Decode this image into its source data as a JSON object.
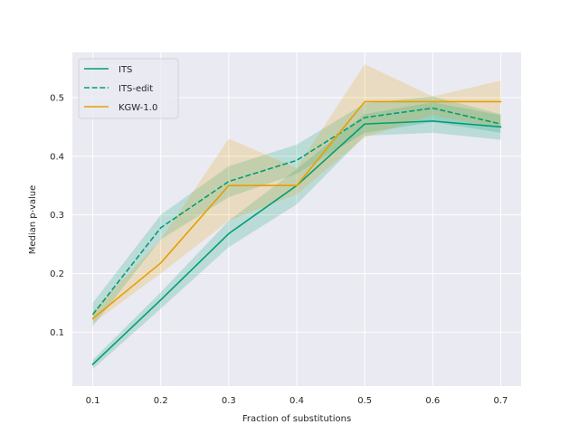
{
  "chart_data": {
    "type": "line",
    "title": "",
    "xlabel": "Fraction of substitutions",
    "ylabel": "Median p-value",
    "x": [
      0.1,
      0.2,
      0.3,
      0.4,
      0.5,
      0.6,
      0.7
    ],
    "xlim": [
      0.07,
      0.73
    ],
    "ylim": [
      0.008,
      0.577
    ],
    "xticks": [
      0.1,
      0.2,
      0.3,
      0.4,
      0.5,
      0.6,
      0.7
    ],
    "xtick_labels": [
      "0.1",
      "0.2",
      "0.3",
      "0.4",
      "0.5",
      "0.6",
      "0.7"
    ],
    "yticks": [
      0.1,
      0.2,
      0.3,
      0.4,
      0.5
    ],
    "ytick_labels": [
      "0.1",
      "0.2",
      "0.3",
      "0.4",
      "0.5"
    ],
    "grid": true,
    "legend_position": "top-left",
    "series": [
      {
        "name": "ITS",
        "color": "#009E73",
        "dash": "solid",
        "values": [
          0.045,
          0.155,
          0.268,
          0.35,
          0.455,
          0.46,
          0.45
        ],
        "lower": [
          0.037,
          0.14,
          0.245,
          0.318,
          0.435,
          0.44,
          0.428
        ],
        "upper": [
          0.053,
          0.168,
          0.29,
          0.378,
          0.472,
          0.492,
          0.47
        ]
      },
      {
        "name": "ITS-edit",
        "color": "#009E73",
        "dash": "dashed",
        "values": [
          0.13,
          0.278,
          0.357,
          0.393,
          0.466,
          0.482,
          0.455
        ],
        "lower": [
          0.11,
          0.258,
          0.33,
          0.37,
          0.44,
          0.458,
          0.44
        ],
        "upper": [
          0.15,
          0.3,
          0.383,
          0.42,
          0.49,
          0.502,
          0.472
        ]
      },
      {
        "name": "KGW-1.0",
        "color": "#E69F00",
        "dash": "solid",
        "values": [
          0.123,
          0.218,
          0.35,
          0.35,
          0.493,
          0.493,
          0.493
        ],
        "lower": [
          0.115,
          0.2,
          0.29,
          0.335,
          0.432,
          0.47,
          0.448
        ],
        "upper": [
          0.135,
          0.258,
          0.43,
          0.38,
          0.557,
          0.502,
          0.529
        ]
      }
    ]
  }
}
